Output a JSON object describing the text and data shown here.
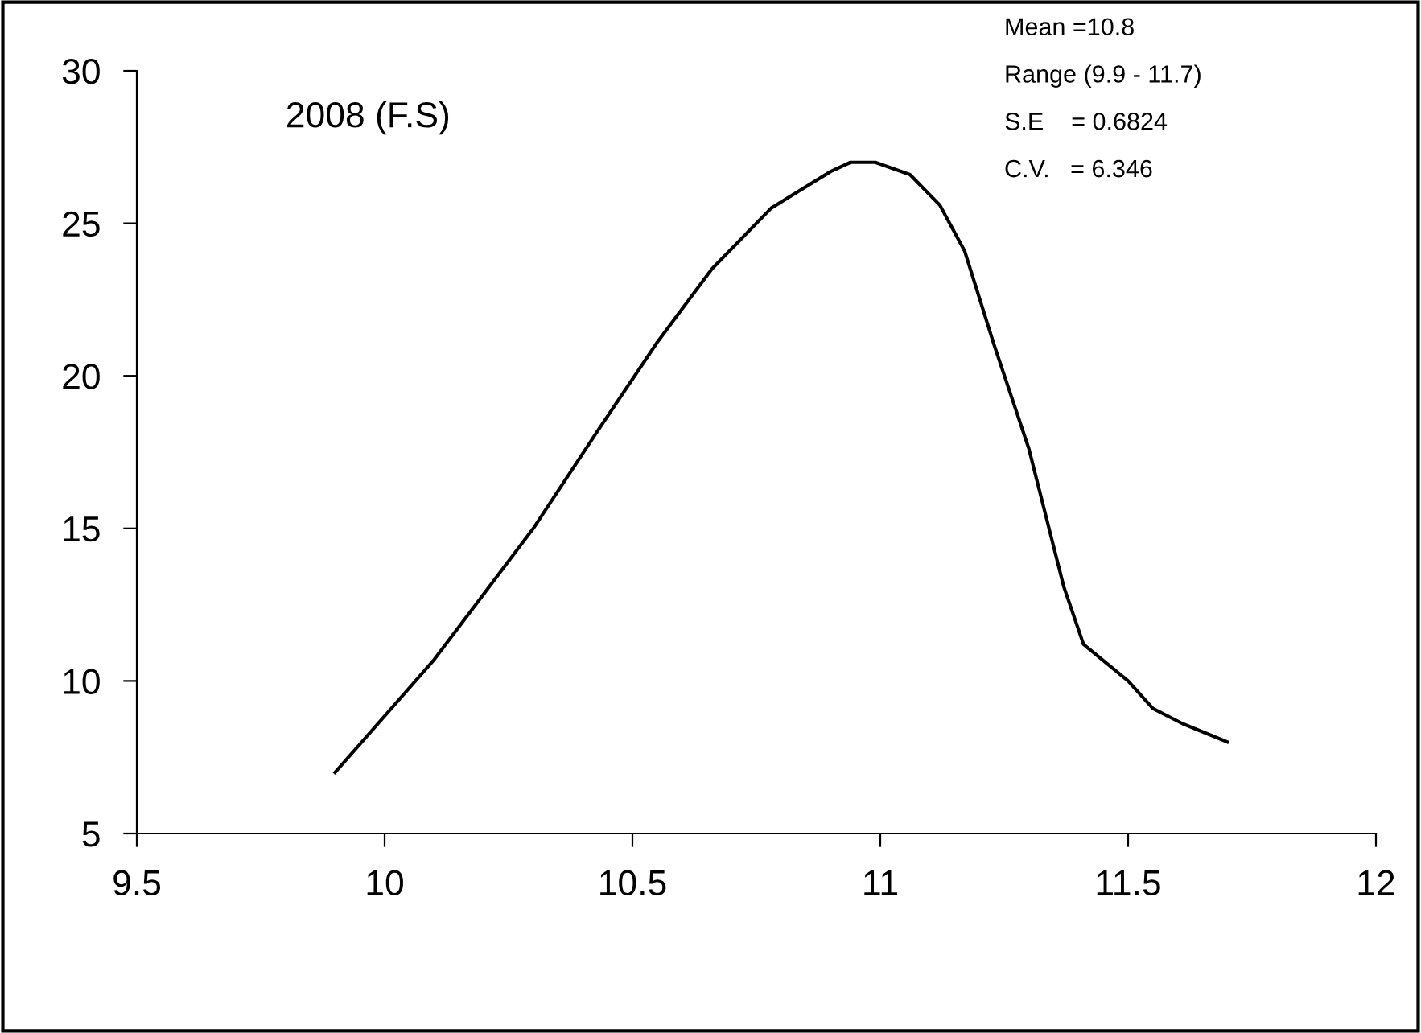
{
  "chart_data": {
    "type": "line",
    "title": "2008 (F.S)",
    "annotations": [
      "Mean =10.8",
      "Range (9.9 - 11.7)",
      "S.E    = 0.6824",
      "C.V.   = 6.346"
    ],
    "series": [
      {
        "color": "#000000",
        "x": [
          9.9,
          10.1,
          10.3,
          10.43,
          10.55,
          10.66,
          10.78,
          10.9,
          10.94,
          10.99,
          11.06,
          11.12,
          11.17,
          11.23,
          11.3,
          11.37,
          11.41,
          11.5,
          11.55,
          11.61,
          11.7
        ],
        "values": [
          7.0,
          10.7,
          15.0,
          18.2,
          21.1,
          23.5,
          25.5,
          26.7,
          27.0,
          27.0,
          26.6,
          25.6,
          24.1,
          21.0,
          17.6,
          13.1,
          11.2,
          10.0,
          9.1,
          8.6,
          8.0
        ]
      }
    ],
    "xlim": [
      9.5,
      12
    ],
    "xticks": [
      9.5,
      10,
      10.5,
      11,
      11.5,
      12
    ],
    "ylim": [
      5,
      30
    ],
    "yticks": [
      5,
      10,
      15,
      20,
      25,
      30
    ],
    "grid": false,
    "legend": false,
    "marker": "none",
    "line_style": "solid"
  }
}
